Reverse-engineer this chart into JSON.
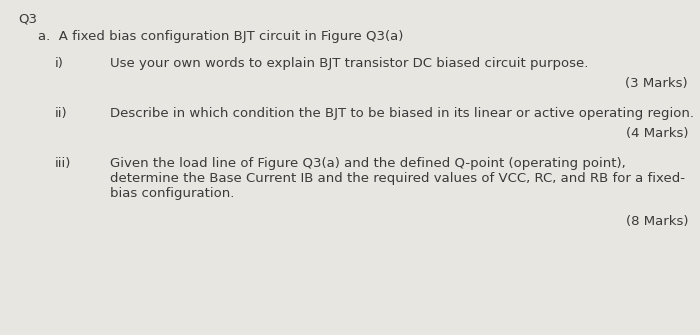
{
  "background_color": "#e8e6e0",
  "text_color": "#3a3a3a",
  "title": "Q3",
  "title_fontsize": 9.5,
  "title_fontweight": "normal",
  "section_a_text": "a.  A fixed bias configuration BJT circuit in Figure Q3(a)",
  "section_a_fontsize": 9.5,
  "item_fontsize": 9.5,
  "marks_fontsize": 9.5,
  "items": [
    {
      "label": "i)",
      "line1": "Use your own words to explain BJT transistor DC biased circuit purpose.",
      "line2": null,
      "line3": null,
      "marks": "(3 Marks)"
    },
    {
      "label": "ii)",
      "line1": "Describe in which condition the BJT to be biased in its linear or active operating region.",
      "line2": null,
      "line3": null,
      "marks": "(4 Marks)"
    },
    {
      "label": "iii)",
      "line1": "Given the load line of Figure Q3(a) and the defined Q-point (operating point),",
      "line2": "determine the Base Current IB and the required values of VCC, RC, and RB for a fixed-",
      "line3": "bias configuration.",
      "marks": "(8 Marks)"
    }
  ]
}
